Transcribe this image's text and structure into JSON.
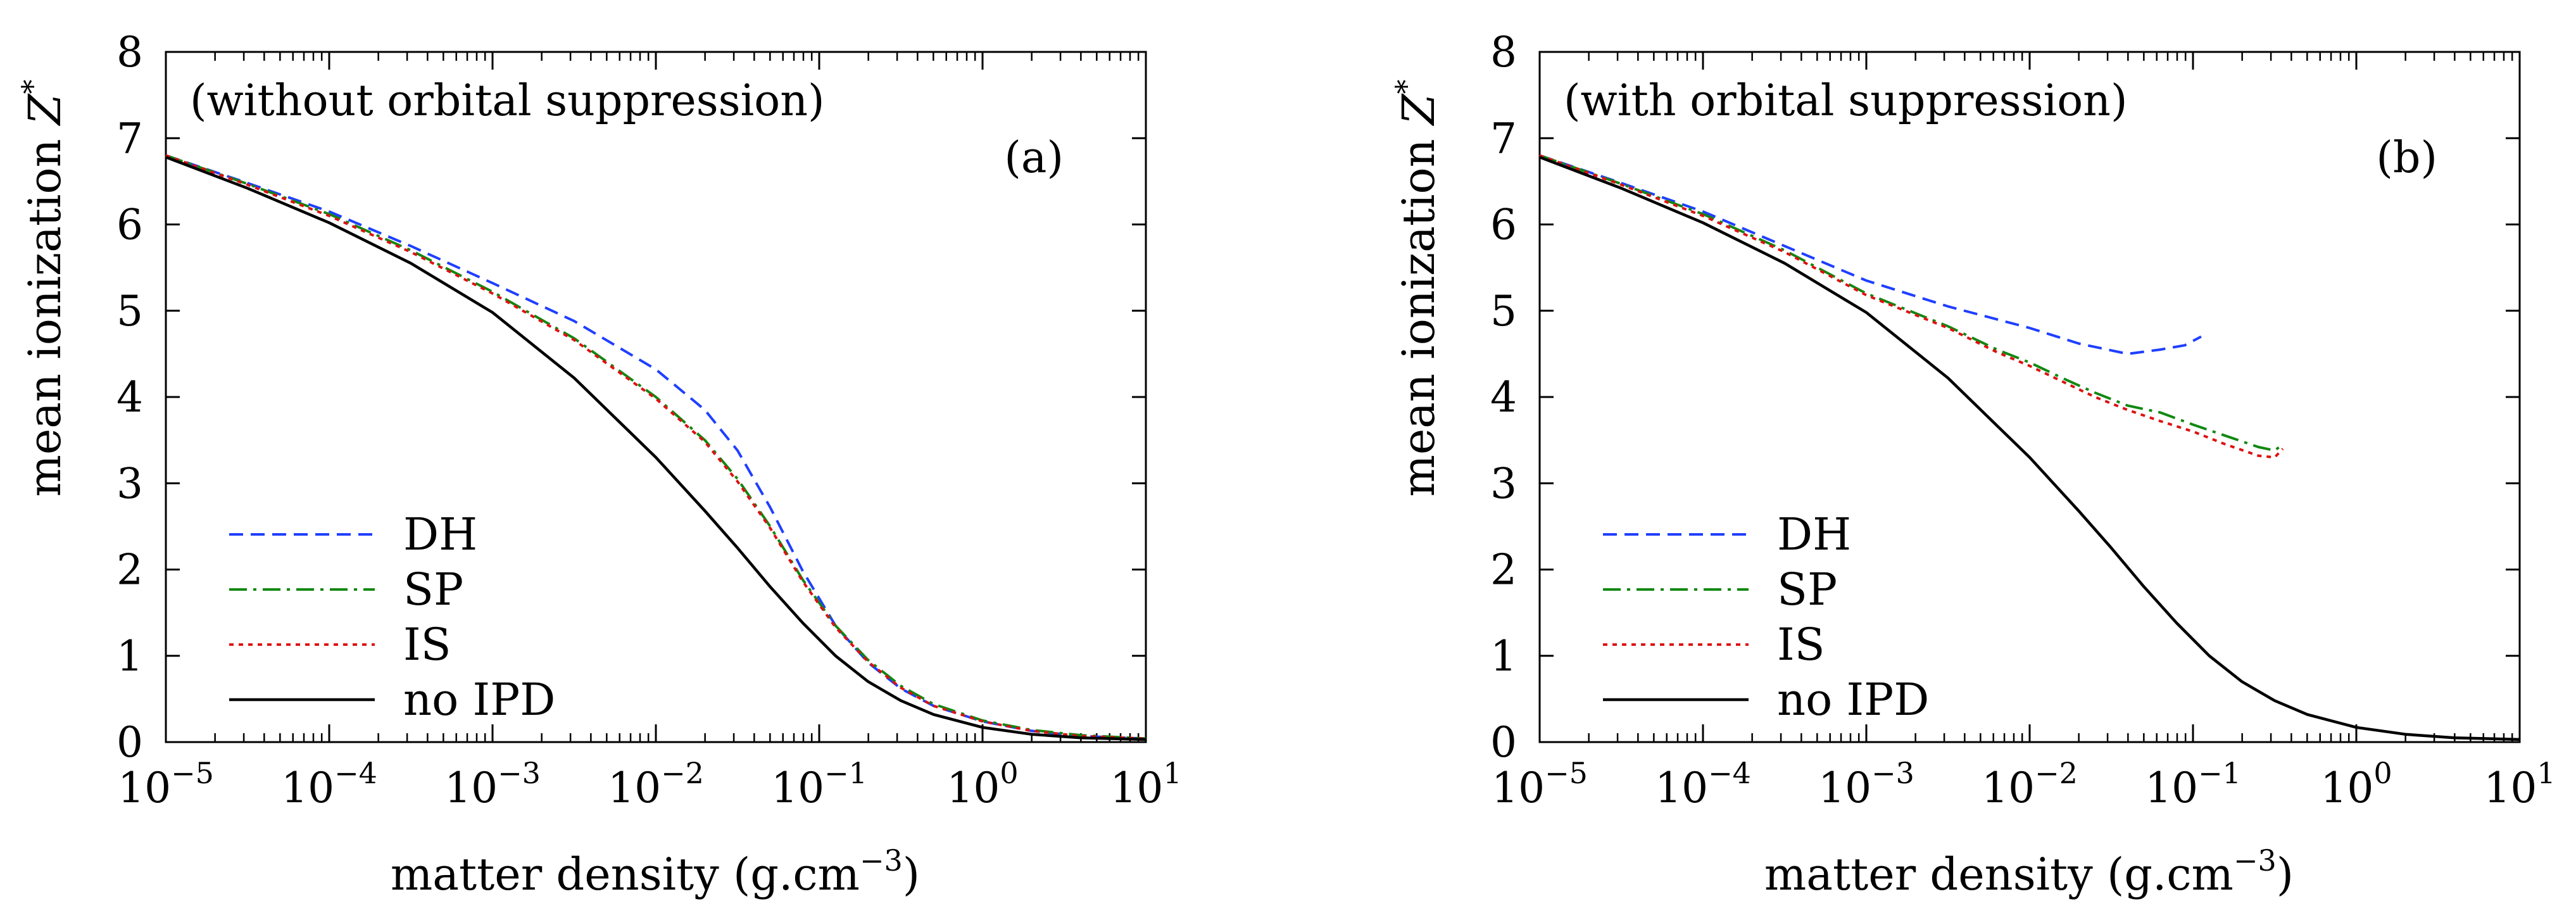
{
  "chart_data": [
    {
      "type": "line",
      "panel_label": "(a)",
      "annotation": "(without orbital suppression)",
      "title": "",
      "xlabel": "matter density (g.cm",
      "xlabel_exponent": "−3",
      "xlabel_close": ")",
      "ylabel": "mean ionization ",
      "ylabel_symbol": "Z",
      "ylabel_superscript": "*",
      "xscale": "log",
      "xlim_log10": [
        -5,
        1
      ],
      "ylim": [
        0,
        8
      ],
      "x_tick_base": "10",
      "x_tick_exponents": [
        "−5",
        "−4",
        "−3",
        "−2",
        "−1",
        "0",
        "1"
      ],
      "y_ticks": [
        "0",
        "1",
        "2",
        "3",
        "4",
        "5",
        "6",
        "7",
        "8"
      ],
      "legend_position": "lower-left",
      "series": [
        {
          "name": "DH",
          "color": "#1f3fff",
          "style": "dashed",
          "log10_x": [
            -5,
            -4.5,
            -4,
            -3.5,
            -3,
            -2.5,
            -2,
            -1.7,
            -1.5,
            -1.3,
            -1.1,
            -0.9,
            -0.7,
            -0.5,
            -0.3,
            0,
            0.3,
            0.6,
            1
          ],
          "y": [
            6.8,
            6.48,
            6.15,
            5.75,
            5.32,
            4.88,
            4.32,
            3.85,
            3.38,
            2.72,
            1.98,
            1.35,
            0.92,
            0.62,
            0.42,
            0.24,
            0.13,
            0.07,
            0.04
          ]
        },
        {
          "name": "SP",
          "color": "#118811",
          "style": "dashdot",
          "log10_x": [
            -5,
            -4.5,
            -4,
            -3.5,
            -3,
            -2.5,
            -2,
            -1.7,
            -1.5,
            -1.3,
            -1.1,
            -0.9,
            -0.7,
            -0.5,
            -0.3,
            0,
            0.3,
            0.6,
            1
          ],
          "y": [
            6.8,
            6.47,
            6.12,
            5.7,
            5.22,
            4.68,
            4.0,
            3.5,
            3.05,
            2.5,
            1.88,
            1.35,
            0.95,
            0.65,
            0.44,
            0.25,
            0.14,
            0.08,
            0.04
          ]
        },
        {
          "name": "IS",
          "color": "#dd1111",
          "style": "dotted",
          "log10_x": [
            -5,
            -4.5,
            -4,
            -3.5,
            -3,
            -2.5,
            -2,
            -1.7,
            -1.5,
            -1.3,
            -1.1,
            -0.9,
            -0.7,
            -0.5,
            -0.3,
            0,
            0.3,
            0.6,
            1
          ],
          "y": [
            6.8,
            6.46,
            6.1,
            5.68,
            5.2,
            4.66,
            3.98,
            3.48,
            3.02,
            2.48,
            1.86,
            1.33,
            0.93,
            0.63,
            0.42,
            0.24,
            0.13,
            0.07,
            0.04
          ]
        },
        {
          "name": "no IPD",
          "color": "#000000",
          "style": "solid",
          "log10_x": [
            -5,
            -4.5,
            -4,
            -3.5,
            -3,
            -2.5,
            -2,
            -1.7,
            -1.5,
            -1.3,
            -1.1,
            -0.9,
            -0.7,
            -0.5,
            -0.3,
            0,
            0.3,
            0.6,
            1
          ],
          "y": [
            6.78,
            6.42,
            6.02,
            5.55,
            4.98,
            4.22,
            3.3,
            2.68,
            2.25,
            1.8,
            1.38,
            1.0,
            0.7,
            0.48,
            0.32,
            0.17,
            0.09,
            0.05,
            0.03
          ]
        }
      ]
    },
    {
      "type": "line",
      "panel_label": "(b)",
      "annotation": "(with orbital suppression)",
      "title": "",
      "xlabel": "matter density (g.cm",
      "xlabel_exponent": "−3",
      "xlabel_close": ")",
      "ylabel": "mean ionization ",
      "ylabel_symbol": "Z",
      "ylabel_superscript": "*",
      "xscale": "log",
      "xlim_log10": [
        -5,
        1
      ],
      "ylim": [
        0,
        8
      ],
      "x_tick_base": "10",
      "x_tick_exponents": [
        "−5",
        "−4",
        "−3",
        "−2",
        "−1",
        "0",
        "1"
      ],
      "y_ticks": [
        "0",
        "1",
        "2",
        "3",
        "4",
        "5",
        "6",
        "7",
        "8"
      ],
      "legend_position": "lower-left",
      "series": [
        {
          "name": "DH",
          "color": "#1f3fff",
          "style": "dashed",
          "log10_x": [
            -5,
            -4.5,
            -4,
            -3.5,
            -3,
            -2.5,
            -2,
            -1.7,
            -1.4,
            -1.2,
            -1.05,
            -0.95
          ],
          "y": [
            6.8,
            6.48,
            6.15,
            5.75,
            5.35,
            5.05,
            4.8,
            4.62,
            4.5,
            4.55,
            4.6,
            4.7
          ]
        },
        {
          "name": "SP",
          "color": "#118811",
          "style": "dashdot",
          "log10_x": [
            -5,
            -4.5,
            -4,
            -3.5,
            -3,
            -2.5,
            -2.2,
            -2,
            -1.8,
            -1.6,
            -1.4,
            -1.2,
            -1.0,
            -0.8,
            -0.6,
            -0.5,
            -0.45
          ],
          "y": [
            6.8,
            6.47,
            6.12,
            5.7,
            5.2,
            4.82,
            4.55,
            4.4,
            4.22,
            4.05,
            3.9,
            3.82,
            3.68,
            3.55,
            3.42,
            3.38,
            3.45
          ]
        },
        {
          "name": "IS",
          "color": "#dd1111",
          "style": "dotted",
          "log10_x": [
            -5,
            -4.5,
            -4,
            -3.5,
            -3,
            -2.5,
            -2.2,
            -2,
            -1.8,
            -1.6,
            -1.4,
            -1.2,
            -1.0,
            -0.8,
            -0.6,
            -0.5,
            -0.45
          ],
          "y": [
            6.8,
            6.46,
            6.1,
            5.68,
            5.18,
            4.8,
            4.52,
            4.36,
            4.18,
            4.0,
            3.85,
            3.72,
            3.6,
            3.45,
            3.32,
            3.3,
            3.4
          ]
        },
        {
          "name": "no IPD",
          "color": "#000000",
          "style": "solid",
          "log10_x": [
            -5,
            -4.5,
            -4,
            -3.5,
            -3,
            -2.5,
            -2,
            -1.7,
            -1.5,
            -1.3,
            -1.1,
            -0.9,
            -0.7,
            -0.5,
            -0.3,
            0,
            0.3,
            0.6,
            1
          ],
          "y": [
            6.78,
            6.42,
            6.02,
            5.55,
            4.98,
            4.22,
            3.3,
            2.68,
            2.25,
            1.8,
            1.38,
            1.0,
            0.7,
            0.48,
            0.32,
            0.17,
            0.09,
            0.05,
            0.03
          ]
        }
      ]
    }
  ]
}
